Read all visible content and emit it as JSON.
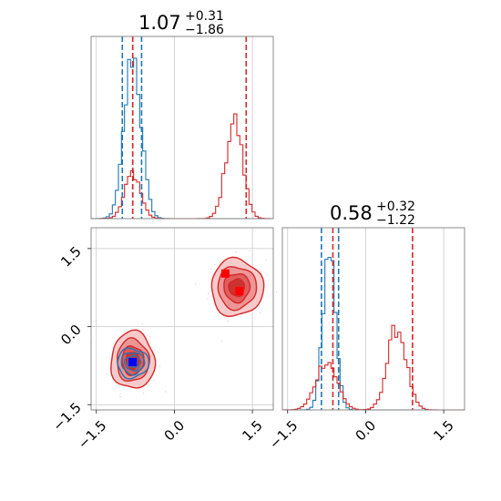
{
  "chart_data": {
    "type": "corner",
    "params": [
      {
        "title_value": "1.07",
        "title_plus": "+0.31",
        "title_minus": "−1.86"
      },
      {
        "title_value": "0.58",
        "title_plus": "+0.32",
        "title_minus": "−1.22"
      }
    ],
    "axis_range": [
      -1.6,
      1.9
    ],
    "ticks": [
      -1.5,
      0.0,
      1.5
    ],
    "tick_labels": [
      "−1.5",
      "0.0",
      "1.5"
    ],
    "grid": true,
    "colors": {
      "blue": "#1f77b4",
      "red": "#d62728",
      "red_marker": "#ff0000",
      "blue_marker": "#0000ff"
    },
    "marginal_1": {
      "blue": {
        "peaks": [
          {
            "center": -0.8,
            "sigma": 0.16,
            "height": 1.0
          }
        ],
        "quantile_lines": [
          -1.0,
          -0.8,
          -0.63
        ]
      },
      "red": {
        "peaks": [
          {
            "center": -0.8,
            "sigma": 0.15,
            "height": 0.28
          },
          {
            "center": 1.15,
            "sigma": 0.16,
            "height": 0.6
          }
        ],
        "quantile_lines": [
          -0.8,
          1.38
        ]
      }
    },
    "marginal_2": {
      "blue": {
        "peaks": [
          {
            "center": -0.7,
            "sigma": 0.12,
            "height": 1.0
          }
        ],
        "quantile_lines": [
          -0.85,
          -0.52
        ]
      },
      "red": {
        "peaks": [
          {
            "center": -0.75,
            "sigma": 0.2,
            "height": 0.3
          },
          {
            "center": 0.6,
            "sigma": 0.18,
            "height": 0.5
          }
        ],
        "quantile_lines": [
          -0.63,
          0.9
        ]
      }
    },
    "joint": {
      "blue_cluster": {
        "center": [
          -0.8,
          -0.7
        ],
        "radius": [
          0.3,
          0.28
        ]
      },
      "red_clusters": [
        {
          "center": [
            -0.8,
            -0.65
          ],
          "radius": [
            0.42,
            0.55
          ]
        },
        {
          "center": [
            1.2,
            0.75
          ],
          "radius": [
            0.5,
            0.55
          ]
        }
      ],
      "markers": [
        {
          "x": 0.98,
          "y": 1.02,
          "color": "red"
        },
        {
          "x": 1.25,
          "y": 0.68,
          "color": "red"
        },
        {
          "x": -0.8,
          "y": -0.68,
          "color": "blue"
        }
      ]
    }
  }
}
